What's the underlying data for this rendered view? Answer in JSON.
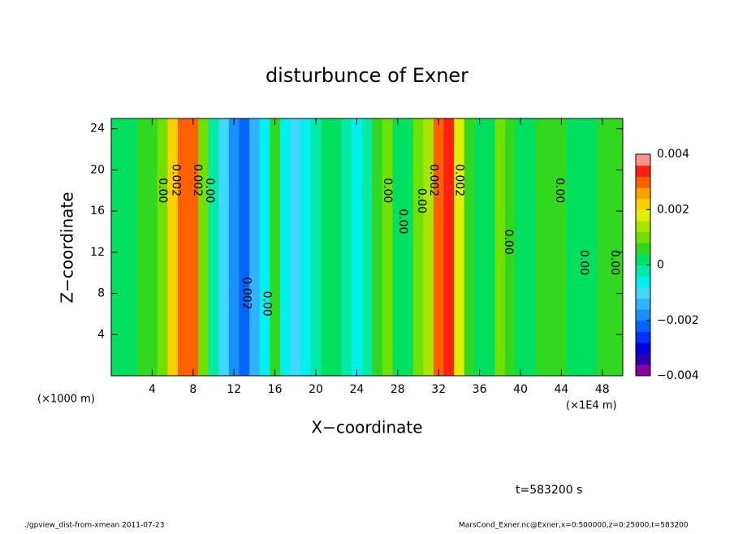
{
  "chart_data": {
    "type": "contour",
    "title": "disturbunce of Exner",
    "xlabel": "X−coordinate",
    "ylabel": "Z−coordinate",
    "x_unit_left": "(×1000 m)",
    "x_unit_right": "(×1E4 m)",
    "xlim": [
      0,
      50
    ],
    "xticks": [
      4,
      8,
      12,
      16,
      20,
      24,
      28,
      32,
      36,
      40,
      44,
      48
    ],
    "ylim": [
      0,
      25
    ],
    "yticks": [
      4,
      8,
      12,
      16,
      20,
      24
    ],
    "x": [
      0,
      1,
      2,
      3,
      4,
      5,
      6,
      7,
      8,
      9,
      10,
      11,
      12,
      13,
      14,
      15,
      16,
      17,
      18,
      19,
      20,
      21,
      22,
      23,
      24,
      25,
      26,
      27,
      28,
      29,
      30,
      31,
      32,
      33,
      34,
      35,
      36,
      37,
      38,
      39,
      40,
      41,
      42,
      43,
      44,
      45,
      46,
      47,
      48,
      49,
      50
    ],
    "values": [
      0.0003,
      0.0002,
      0.0002,
      0.0004,
      0.0006,
      0.001,
      0.002,
      0.003,
      0.0028,
      0.0012,
      -0.0004,
      -0.0012,
      -0.0018,
      -0.0024,
      -0.0016,
      -0.0006,
      0.0004,
      -0.0008,
      -0.0012,
      -0.0008,
      -0.0002,
      0,
      0.0001,
      -0.0002,
      -0.0008,
      -0.0004,
      0.0004,
      0.0008,
      0.0003,
      0,
      0.0008,
      0.0014,
      0.003,
      0.0032,
      0.0016,
      0.0006,
      0.0002,
      0.0003,
      0.0008,
      0.0004,
      0.0001,
      0.0002,
      0.0004,
      0.0006,
      0.0005,
      0.0002,
      0.0001,
      0.0002,
      0.0004,
      0.0006,
      0.0005
    ],
    "clim": [
      -0.004,
      0.004
    ],
    "cticks": [
      {
        "value": -0.004,
        "label": "−0.004"
      },
      {
        "value": -0.002,
        "label": "−0.002"
      },
      0,
      0.002,
      0.004
    ],
    "colors": [
      "#8a00a8",
      "#2a00b0",
      "#0000e0",
      "#0030ff",
      "#0064ff",
      "#1a90ff",
      "#30b4ff",
      "#40d8ff",
      "#00f0f0",
      "#00eaa8",
      "#00e060",
      "#30d820",
      "#70e000",
      "#a8e800",
      "#e0f000",
      "#ffd000",
      "#ffa000",
      "#ff6000",
      "#ff2010",
      "#ff9090"
    ],
    "contour_labels": [
      {
        "x": 5.0,
        "y": 18,
        "label": "0.00"
      },
      {
        "x": 6.3,
        "y": 19,
        "label": "0.002"
      },
      {
        "x": 8.4,
        "y": 19,
        "label": "0.002"
      },
      {
        "x": 9.6,
        "y": 18,
        "label": "0.00"
      },
      {
        "x": 13.2,
        "y": 8,
        "label": "0.002"
      },
      {
        "x": 15.2,
        "y": 7,
        "label": "0.00"
      },
      {
        "x": 27.0,
        "y": 18,
        "label": "0.00"
      },
      {
        "x": 28.5,
        "y": 15,
        "label": "0.00"
      },
      {
        "x": 30.3,
        "y": 17,
        "label": "0.00"
      },
      {
        "x": 31.5,
        "y": 19,
        "label": "0.002"
      },
      {
        "x": 34.0,
        "y": 19,
        "label": "0.002"
      },
      {
        "x": 38.8,
        "y": 13,
        "label": "0.00"
      },
      {
        "x": 43.8,
        "y": 18,
        "label": "0.00"
      },
      {
        "x": 46.2,
        "y": 11,
        "label": "0.00"
      },
      {
        "x": 49.2,
        "y": 11,
        "label": "0.00"
      }
    ],
    "time_label": "t=583200 s",
    "footer_left": "./gpview_dist-from-xmean  2011-07-23",
    "footer_right": "MarsCond_Exner.nc@Exner,x=0:500000,z=0:25000,t=583200"
  }
}
